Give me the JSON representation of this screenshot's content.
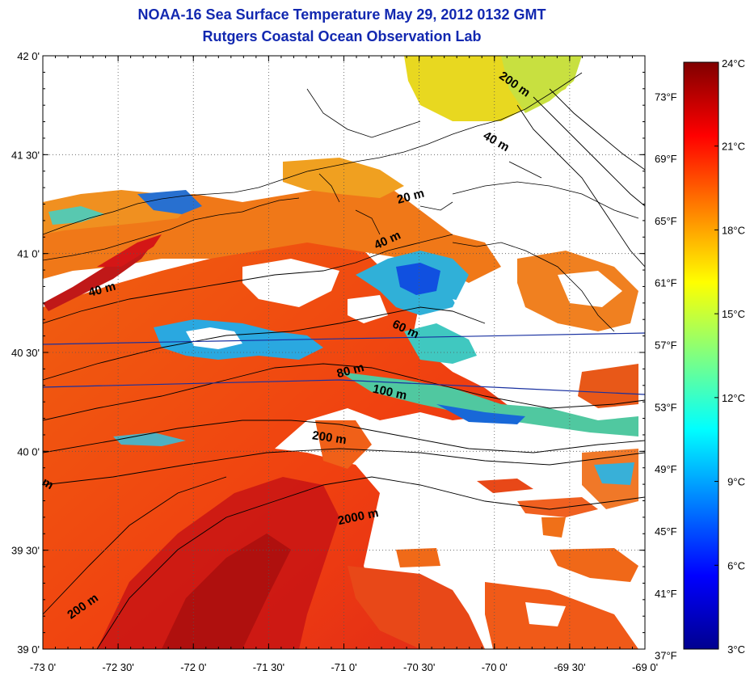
{
  "title": {
    "line1": "NOAA-16 Sea Surface Temperature May 29, 2012 0132 GMT",
    "line2": "Rutgers Coastal Ocean Observation Lab"
  },
  "map": {
    "lon_range": [
      -73.0,
      -69.0
    ],
    "lat_range": [
      39.0,
      42.0
    ],
    "x_ticks": [
      "-73 0'",
      "-72 30'",
      "-72 0'",
      "-71 30'",
      "-71 0'",
      "-70 30'",
      "-70 0'",
      "-69 30'",
      "-69 0'"
    ],
    "y_ticks": [
      "42 0'",
      "41 30'",
      "41 0'",
      "40 30'",
      "40 0'",
      "39 30'",
      "39 0'"
    ],
    "grid": "dotted",
    "missing_color": "#ffffff",
    "contour_labels": [
      {
        "text": "200 m",
        "lon": -69.88,
        "lat": 41.84,
        "rot": 35
      },
      {
        "text": "40 m",
        "lon": -70.0,
        "lat": 41.55,
        "rot": 30
      },
      {
        "text": "20 m",
        "lon": -70.55,
        "lat": 41.27,
        "rot": -15
      },
      {
        "text": "40 m",
        "lon": -70.7,
        "lat": 41.05,
        "rot": -25
      },
      {
        "text": "40 m",
        "lon": -72.6,
        "lat": 40.8,
        "rot": -15
      },
      {
        "text": "60 m",
        "lon": -70.6,
        "lat": 40.6,
        "rot": 25
      },
      {
        "text": "80 m",
        "lon": -70.95,
        "lat": 40.39,
        "rot": -15
      },
      {
        "text": "100 m",
        "lon": -70.7,
        "lat": 40.28,
        "rot": 12
      },
      {
        "text": "200 m",
        "lon": -71.1,
        "lat": 40.05,
        "rot": 8
      },
      {
        "text": "2000 m",
        "lon": -70.9,
        "lat": 39.65,
        "rot": -12
      },
      {
        "text": "200 m",
        "lon": -72.72,
        "lat": 39.2,
        "rot": -35
      },
      {
        "text": "m",
        "lon": -72.98,
        "lat": 39.82,
        "rot": 30
      }
    ]
  },
  "colorbar": {
    "range_c": [
      3,
      24
    ],
    "celsius_labels": [
      {
        "value": 24,
        "text": "24°C"
      },
      {
        "value": 21,
        "text": "21°C"
      },
      {
        "value": 18,
        "text": "18°C"
      },
      {
        "value": 15,
        "text": "15°C"
      },
      {
        "value": 12,
        "text": "12°C"
      },
      {
        "value": 9,
        "text": "9°C"
      },
      {
        "value": 6,
        "text": "6°C"
      },
      {
        "value": 3,
        "text": "3°C"
      }
    ],
    "fahrenheit_labels": [
      {
        "value": 73,
        "text": "73°F"
      },
      {
        "value": 69,
        "text": "69°F"
      },
      {
        "value": 65,
        "text": "65°F"
      },
      {
        "value": 61,
        "text": "61°F"
      },
      {
        "value": 57,
        "text": "57°F"
      },
      {
        "value": 53,
        "text": "53°F"
      },
      {
        "value": 49,
        "text": "49°F"
      },
      {
        "value": 45,
        "text": "45°F"
      },
      {
        "value": 41,
        "text": "41°F"
      },
      {
        "value": 37,
        "text": "37°F"
      }
    ],
    "stops": [
      "#00008f",
      "#0000ff",
      "#0080ff",
      "#00ffff",
      "#80ff80",
      "#ffff00",
      "#ff8000",
      "#ff0000",
      "#800000"
    ]
  }
}
